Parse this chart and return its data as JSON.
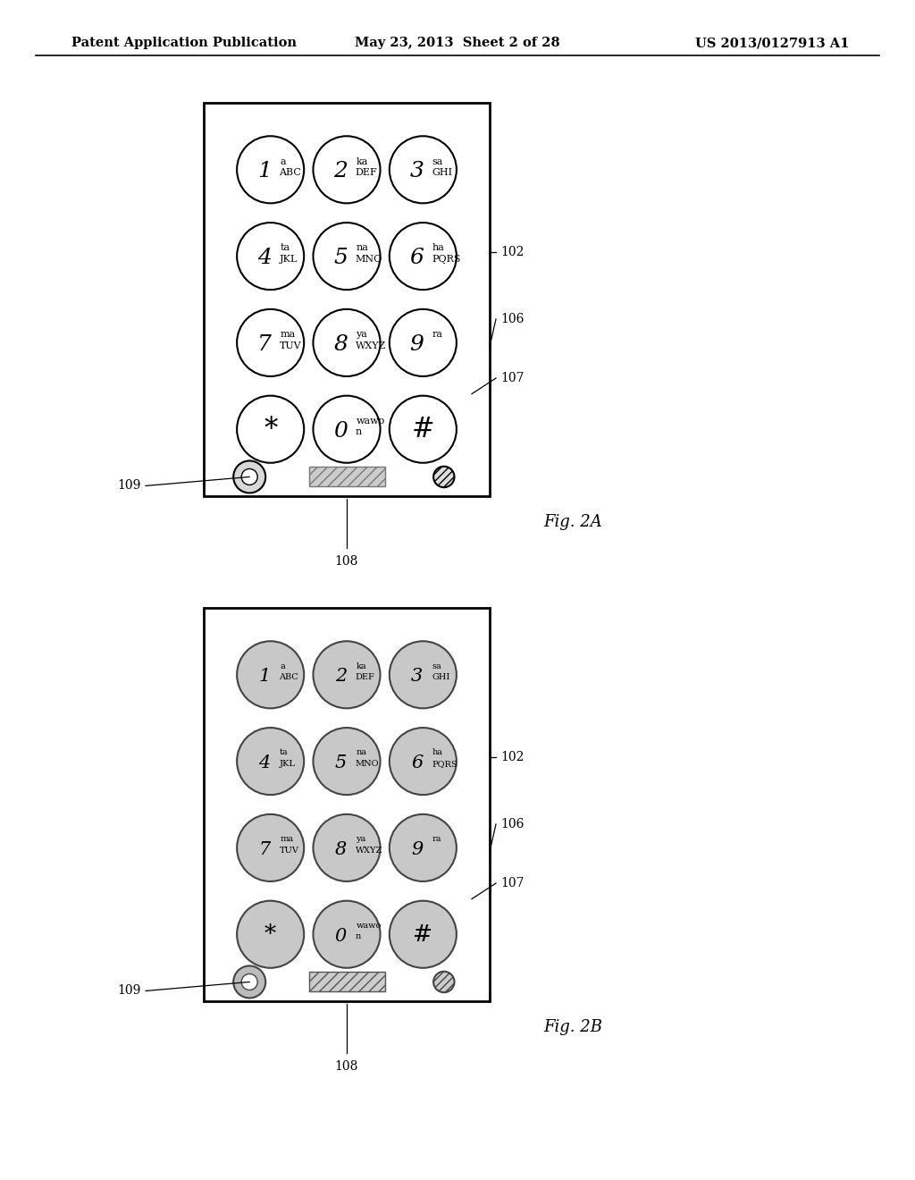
{
  "title_left": "Patent Application Publication",
  "title_mid": "May 23, 2013  Sheet 2 of 28",
  "title_right": "US 2013/0127913 A1",
  "fig2a_label": "Fig. 2A",
  "fig2b_label": "Fig. 2B",
  "fig_width": 1024,
  "fig_height": 1320,
  "buttons": [
    {
      "num": "1",
      "sup": "a",
      "sub": "ABC",
      "row": 0,
      "col": 0
    },
    {
      "num": "2",
      "sup": "ka",
      "sub": "DEF",
      "row": 0,
      "col": 1
    },
    {
      "num": "3",
      "sup": "sa",
      "sub": "GHI",
      "row": 0,
      "col": 2
    },
    {
      "num": "4",
      "sup": "ta",
      "sub": "JKL",
      "row": 1,
      "col": 0
    },
    {
      "num": "5",
      "sup": "na",
      "sub": "MNO",
      "row": 1,
      "col": 1
    },
    {
      "num": "6",
      "sup": "ha",
      "sub": "PQRS",
      "row": 1,
      "col": 2
    },
    {
      "num": "7",
      "sup": "ma",
      "sub": "TUV",
      "row": 2,
      "col": 0
    },
    {
      "num": "8",
      "sup": "ya",
      "sub": "WXYZ",
      "row": 2,
      "col": 1
    },
    {
      "num": "9",
      "sup": "ra",
      "sub": "",
      "row": 2,
      "col": 2
    },
    {
      "num": "*",
      "sup": "",
      "sub": "",
      "row": 3,
      "col": 0
    },
    {
      "num": "0",
      "sup": "wawo",
      "sub": "n",
      "row": 3,
      "col": 1
    },
    {
      "num": "#",
      "sup": "",
      "sub": "",
      "row": 3,
      "col": 2
    }
  ]
}
